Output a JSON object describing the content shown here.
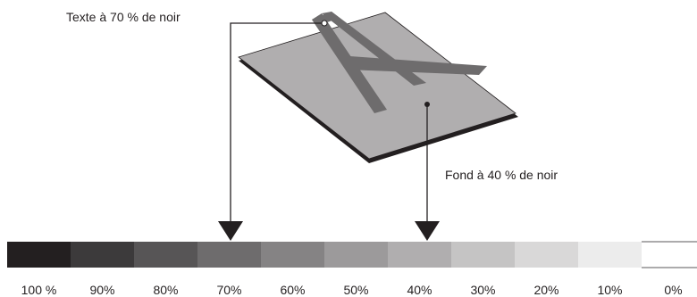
{
  "labels": {
    "text": "Texte à 70 % de noir",
    "background": "Fond à 40 % de noir"
  },
  "scale": [
    {
      "label": "100 %",
      "color": "#231f20"
    },
    {
      "label": "90%",
      "color": "#3c3a3b"
    },
    {
      "label": "80%",
      "color": "#575556"
    },
    {
      "label": "70%",
      "color": "#6e6c6d"
    },
    {
      "label": "60%",
      "color": "#858384"
    },
    {
      "label": "50%",
      "color": "#9c9a9b"
    },
    {
      "label": "40%",
      "color": "#b0aeaf"
    },
    {
      "label": "30%",
      "color": "#c5c4c4"
    },
    {
      "label": "20%",
      "color": "#d9d8d8"
    },
    {
      "label": "10%",
      "color": "#ececec"
    },
    {
      "label": "0%",
      "color": "#ffffff"
    }
  ],
  "colors": {
    "plate_top": "#b0aeaf",
    "plate_edge": "#231f20",
    "letter": "#6e6c6d",
    "line": "#231f20"
  }
}
